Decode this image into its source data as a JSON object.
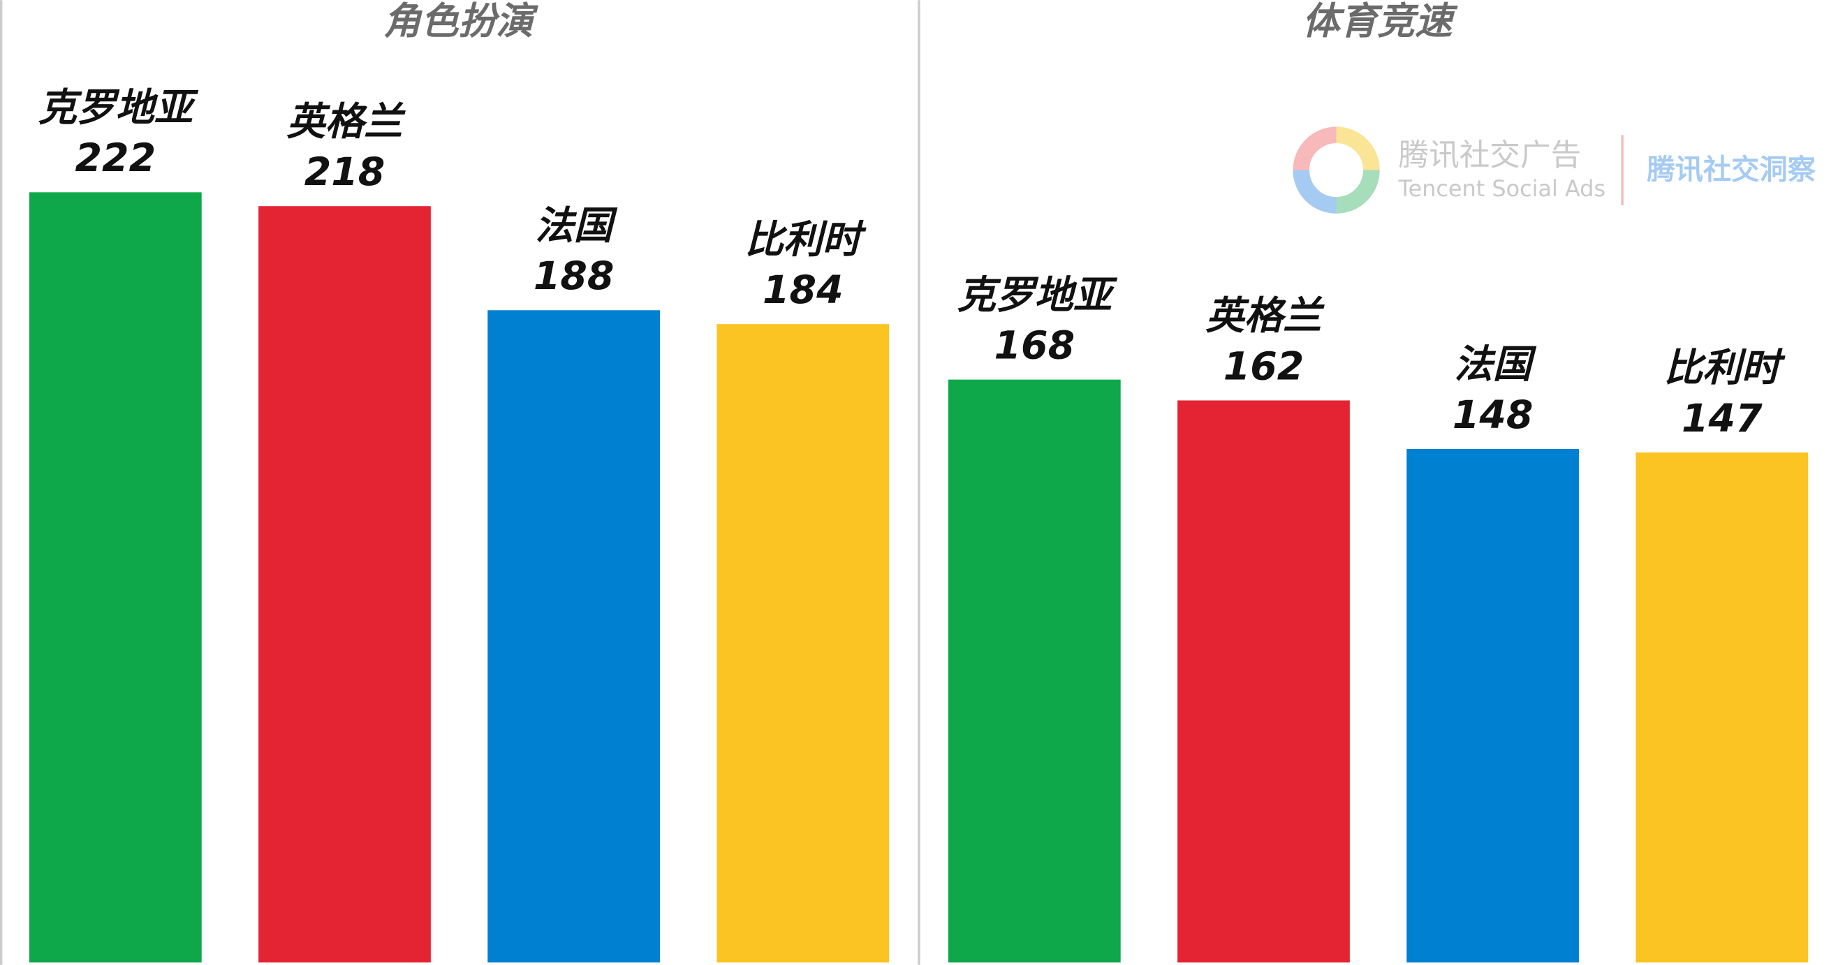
{
  "chart_data": [
    {
      "type": "bar",
      "title": "角色扮演",
      "categories": [
        "克罗地亚",
        "英格兰",
        "法国",
        "比利时"
      ],
      "values": [
        222,
        218,
        188,
        184
      ],
      "colors": [
        "#0ea84b",
        "#e52433",
        "#0080d0",
        "#fbc423"
      ]
    },
    {
      "type": "bar",
      "title": "体育竞速",
      "categories": [
        "克罗地亚",
        "英格兰",
        "法国",
        "比利时"
      ],
      "values": [
        168,
        162,
        148,
        147
      ],
      "colors": [
        "#0ea84b",
        "#e52433",
        "#0080d0",
        "#fbc423"
      ]
    }
  ],
  "watermark": {
    "brand": "腾讯社交广告",
    "brand_en": "Tencent Social Ads",
    "insight": "腾讯社交洞察"
  }
}
